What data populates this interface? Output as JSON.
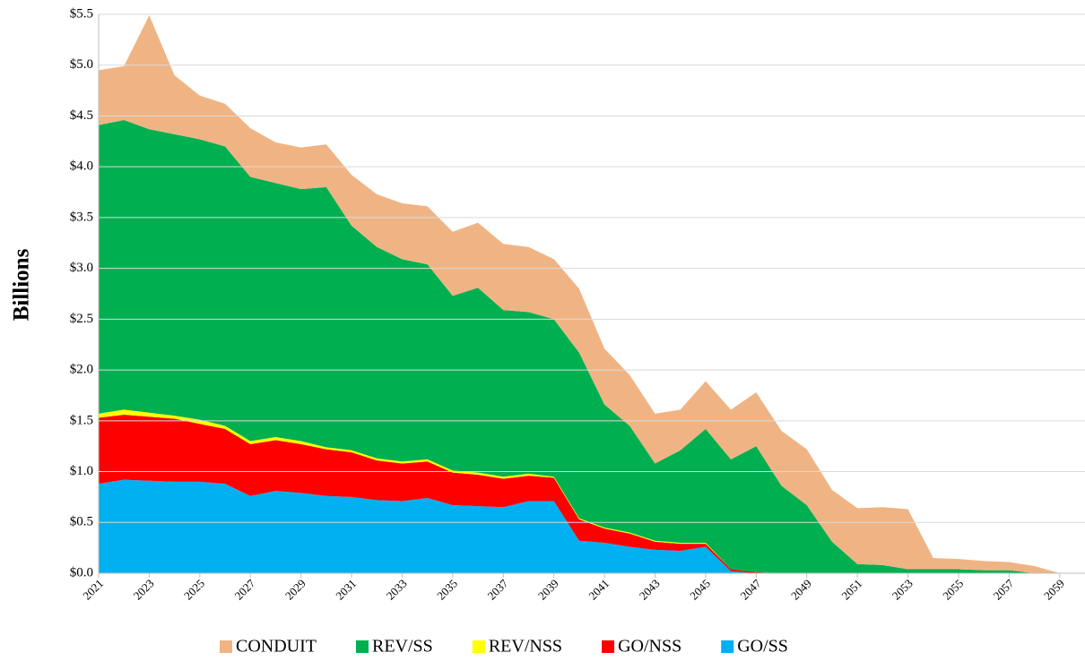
{
  "chart_data": {
    "type": "stacked_area",
    "y_label": "Billions",
    "x": [
      2021,
      2022,
      2023,
      2024,
      2025,
      2026,
      2027,
      2028,
      2029,
      2030,
      2031,
      2032,
      2033,
      2034,
      2035,
      2036,
      2037,
      2038,
      2039,
      2040,
      2041,
      2042,
      2043,
      2044,
      2045,
      2046,
      2047,
      2048,
      2049,
      2050,
      2051,
      2052,
      2053,
      2054,
      2055,
      2056,
      2057,
      2058,
      2059
    ],
    "xlim": [
      2021,
      2060
    ],
    "xticks": [
      2021,
      2023,
      2025,
      2027,
      2029,
      2031,
      2033,
      2035,
      2037,
      2039,
      2041,
      2043,
      2045,
      2047,
      2049,
      2051,
      2053,
      2055,
      2057,
      2059
    ],
    "ylim": [
      0,
      5.5
    ],
    "yticks": [
      {
        "value": 0,
        "label": "$0.0"
      },
      {
        "value": 0.5,
        "label": "$0.5"
      },
      {
        "value": 1,
        "label": "$1.0"
      },
      {
        "value": 1.5,
        "label": "$1.5"
      },
      {
        "value": 2,
        "label": "$2.0"
      },
      {
        "value": 2.5,
        "label": "$2.5"
      },
      {
        "value": 3,
        "label": "$3.0"
      },
      {
        "value": 3.5,
        "label": "$3.5"
      },
      {
        "value": 4,
        "label": "$4.0"
      },
      {
        "value": 4.5,
        "label": "$4.5"
      },
      {
        "value": 5,
        "label": "$5.0"
      },
      {
        "value": 5.5,
        "label": "$5.5"
      }
    ],
    "grid": true,
    "legend": "bottom",
    "series": [
      {
        "name": "CONDUIT",
        "color": "#f0b484",
        "values": [
          0.54,
          0.53,
          1.12,
          0.58,
          0.43,
          0.42,
          0.48,
          0.4,
          0.41,
          0.42,
          0.5,
          0.52,
          0.55,
          0.57,
          0.63,
          0.64,
          0.65,
          0.64,
          0.59,
          0.63,
          0.55,
          0.5,
          0.49,
          0.4,
          0.47,
          0.49,
          0.53,
          0.54,
          0.55,
          0.51,
          0.55,
          0.57,
          0.59,
          0.11,
          0.1,
          0.09,
          0.08,
          0.07,
          0
        ]
      },
      {
        "name": "REV/SS",
        "color": "#00b050",
        "values": [
          2.84,
          2.85,
          2.79,
          2.77,
          2.76,
          2.75,
          2.6,
          2.5,
          2.48,
          2.56,
          2.21,
          2.08,
          1.99,
          1.92,
          1.72,
          1.82,
          1.64,
          1.59,
          1.55,
          1.63,
          1.21,
          1.05,
          0.76,
          0.91,
          1.12,
          1.08,
          1.24,
          0.86,
          0.67,
          0.31,
          0.09,
          0.08,
          0.04,
          0.04,
          0.04,
          0.03,
          0.03,
          0,
          0
        ]
      },
      {
        "name": "REV/NSS",
        "color": "#ffff00",
        "values": [
          0.04,
          0.05,
          0.04,
          0.03,
          0.04,
          0.03,
          0.03,
          0.03,
          0.03,
          0.02,
          0.02,
          0.02,
          0.02,
          0.02,
          0.02,
          0.02,
          0.02,
          0.02,
          0.01,
          0.01,
          0.01,
          0.01,
          0.01,
          0.01,
          0.01,
          0,
          0,
          0,
          0,
          0,
          0,
          0,
          0,
          0,
          0,
          0,
          0,
          0,
          0
        ]
      },
      {
        "name": "GO/NSS",
        "color": "#ff0000",
        "values": [
          0.65,
          0.64,
          0.63,
          0.62,
          0.57,
          0.54,
          0.51,
          0.5,
          0.48,
          0.46,
          0.44,
          0.39,
          0.37,
          0.36,
          0.32,
          0.31,
          0.28,
          0.25,
          0.23,
          0.21,
          0.14,
          0.13,
          0.08,
          0.07,
          0.03,
          0.02,
          0.01,
          0,
          0,
          0,
          0,
          0,
          0,
          0,
          0,
          0,
          0,
          0,
          0
        ]
      },
      {
        "name": "GO/SS",
        "color": "#00b0f0",
        "values": [
          0.88,
          0.92,
          0.91,
          0.9,
          0.9,
          0.88,
          0.76,
          0.81,
          0.79,
          0.76,
          0.75,
          0.72,
          0.71,
          0.74,
          0.67,
          0.66,
          0.65,
          0.71,
          0.71,
          0.32,
          0.3,
          0.26,
          0.23,
          0.22,
          0.26,
          0.02,
          0,
          0,
          0,
          0,
          0,
          0,
          0,
          0,
          0,
          0,
          0,
          0,
          0
        ]
      }
    ]
  }
}
